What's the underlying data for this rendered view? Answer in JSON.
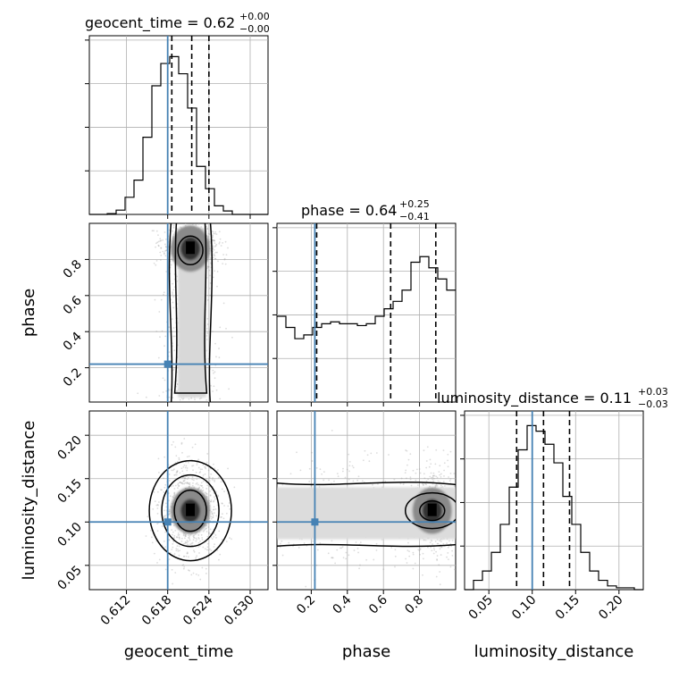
{
  "chart_data": {
    "type": "corner",
    "parameters": [
      "geocent_time",
      "phase",
      "luminosity_distance"
    ],
    "truths": {
      "geocent_time": 0.618,
      "phase": 0.22,
      "luminosity_distance": 0.1
    },
    "truth_color": "#4682b4",
    "ranges": {
      "geocent_time": [
        0.6066,
        0.6326
      ],
      "phase": [
        0.01,
        1.0
      ],
      "luminosity_distance": [
        0.022,
        0.228
      ]
    },
    "ticks": {
      "geocent_time": [
        0.612,
        0.618,
        0.624,
        0.63
      ],
      "phase": [
        0.2,
        0.4,
        0.6,
        0.8
      ],
      "luminosity_distance": [
        0.05,
        0.1,
        0.15,
        0.2
      ]
    },
    "tick_labels": {
      "geocent_time": [
        "0.612",
        "0.618",
        "0.624",
        "0.630"
      ],
      "phase": [
        "0.2",
        "0.4",
        "0.6",
        "0.8"
      ],
      "luminosity_distance": [
        "0.05",
        "0.10",
        "0.15",
        "0.20"
      ]
    },
    "panel_titles": [
      {
        "name": "geocent_time",
        "value": "0.62",
        "plus": "+0.00",
        "minus": "−0.00"
      },
      {
        "name": "phase",
        "value": "0.64",
        "plus": "+0.25",
        "minus": "−0.41"
      },
      {
        "name": "luminosity_distance",
        "value": "0.11",
        "plus": "+0.03",
        "minus": "−0.03"
      }
    ],
    "quantiles": {
      "geocent_time": [
        0.6186,
        0.6215,
        0.624
      ],
      "phase": [
        0.23,
        0.64,
        0.89
      ],
      "luminosity_distance": [
        0.082,
        0.113,
        0.143
      ]
    },
    "histograms": {
      "geocent_time": {
        "edges": [
          0.6066,
          0.6079,
          0.6092,
          0.6105,
          0.6118,
          0.6131,
          0.6144,
          0.6157,
          0.617,
          0.6183,
          0.6196,
          0.6209,
          0.6222,
          0.6235,
          0.6248,
          0.6261,
          0.6274,
          0.6287,
          0.63,
          0.6313,
          0.6326
        ],
        "counts": [
          0.0,
          0.0,
          0.005,
          0.025,
          0.1,
          0.2,
          0.45,
          0.75,
          0.88,
          0.92,
          0.82,
          0.62,
          0.28,
          0.15,
          0.05,
          0.02,
          0.0,
          0.0,
          0.0,
          0.0
        ],
        "ymax": 1.0
      },
      "phase": {
        "edges": [
          0.01,
          0.0595,
          0.109,
          0.1585,
          0.208,
          0.2575,
          0.307,
          0.3565,
          0.406,
          0.4555,
          0.505,
          0.5545,
          0.604,
          0.6535,
          0.703,
          0.7525,
          0.802,
          0.8515,
          0.901,
          0.9505,
          1.0
        ],
        "counts": [
          0.46,
          0.4,
          0.34,
          0.36,
          0.4,
          0.42,
          0.43,
          0.42,
          0.42,
          0.41,
          0.42,
          0.46,
          0.5,
          0.54,
          0.6,
          0.75,
          0.78,
          0.72,
          0.66,
          0.6
        ],
        "ymax": 0.92
      },
      "luminosity_distance": {
        "edges": [
          0.022,
          0.0323,
          0.0426,
          0.0529,
          0.0632,
          0.0735,
          0.0838,
          0.0941,
          0.1044,
          0.1147,
          0.125,
          0.1353,
          0.1456,
          0.1559,
          0.1662,
          0.1765,
          0.1868,
          0.1971,
          0.2074,
          0.2177,
          0.228
        ],
        "counts": [
          0.0,
          0.05,
          0.1,
          0.2,
          0.35,
          0.55,
          0.75,
          0.88,
          0.85,
          0.78,
          0.68,
          0.5,
          0.35,
          0.2,
          0.1,
          0.05,
          0.02,
          0.01,
          0.01,
          0.0
        ],
        "ymax": 0.92
      }
    }
  }
}
